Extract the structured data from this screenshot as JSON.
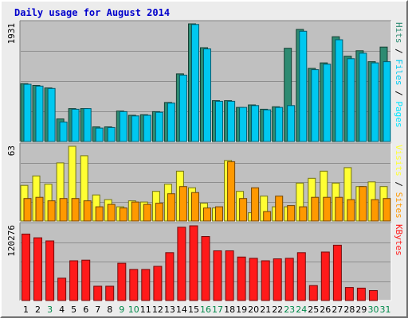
{
  "chart_data": {
    "type": "bar",
    "title": "Daily usage for August 2014",
    "colors": {
      "background": "#ececec",
      "plot": "#c0c0c0",
      "title": "#0000cc",
      "hits": "#2e8b72",
      "files": "#00c8f0",
      "pages": "#00e5ff",
      "visits": "#ffff33",
      "sites": "#ff9900",
      "kbytes": "#ff1a1a",
      "weekend_label": "#00894a",
      "weekday_label": "#000000",
      "separator": "#555555"
    },
    "categories": [
      "1",
      "2",
      "3",
      "4",
      "5",
      "6",
      "7",
      "8",
      "9",
      "10",
      "11",
      "12",
      "13",
      "14",
      "15",
      "16",
      "17",
      "18",
      "19",
      "20",
      "21",
      "22",
      "23",
      "24",
      "25",
      "26",
      "27",
      "28",
      "29",
      "30",
      "31"
    ],
    "weekend": [
      false,
      false,
      true,
      false,
      false,
      false,
      false,
      false,
      true,
      true,
      false,
      false,
      false,
      false,
      false,
      true,
      true,
      false,
      false,
      false,
      false,
      false,
      true,
      true,
      false,
      false,
      false,
      false,
      false,
      true,
      true
    ],
    "panels": [
      {
        "max_label": "1931",
        "ymax": 1931,
        "legend": [
          {
            "name": "Pages",
            "color": "#00e5ff"
          },
          {
            "name": " / ",
            "color": "#000000"
          },
          {
            "name": "Files",
            "color": "#00c8f0"
          },
          {
            "name": " / ",
            "color": "#000000"
          },
          {
            "name": "Hits",
            "color": "#2e8b72"
          }
        ],
        "series": [
          {
            "name": "Hits",
            "color": "#2e8b72",
            "values": [
              950,
              920,
              880,
              370,
              540,
              540,
              240,
              240,
              500,
              430,
              440,
              490,
              640,
              1110,
              1931,
              1540,
              670,
              670,
              560,
              600,
              530,
              570,
              1530,
              1840,
              1200,
              1290,
              1720,
              1400,
              1490,
              1310,
              1550
            ]
          },
          {
            "name": "Files",
            "color": "#00c8f0",
            "values": [
              940,
              910,
              870,
              320,
              530,
              540,
              220,
              230,
              490,
              420,
              430,
              480,
              630,
              1090,
              1920,
              1520,
              660,
              660,
              560,
              590,
              520,
              560,
              590,
              1810,
              1180,
              1270,
              1670,
              1360,
              1450,
              1290,
              1310
            ]
          }
        ]
      },
      {
        "max_label": "63",
        "ymax": 63,
        "legend": [
          {
            "name": "Sites",
            "color": "#ff9900"
          },
          {
            "name": " / ",
            "color": "#000000"
          },
          {
            "name": "Visits",
            "color": "#ffff33"
          }
        ],
        "series": [
          {
            "name": "Visits",
            "color": "#ffff33",
            "values": [
              30,
              38,
              31,
              49,
              63,
              55,
              22,
              18,
              12,
              17,
              16,
              25,
              31,
              42,
              28,
              15,
              11,
              51,
              25,
              7,
              21,
              12,
              12,
              32,
              36,
              42,
              32,
              45,
              29,
              33,
              29
            ]
          },
          {
            "name": "Sites",
            "color": "#ff9900",
            "values": [
              19,
              20,
              17,
              19,
              19,
              17,
              12,
              14,
              11,
              16,
              14,
              15,
              23,
              29,
              24,
              11,
              12,
              50,
              19,
              28,
              8,
              21,
              13,
              12,
              20,
              20,
              20,
              18,
              29,
              18,
              19
            ]
          }
        ]
      },
      {
        "max_label": "120276",
        "ymax": 120276,
        "legend": [
          {
            "name": "KBytes",
            "color": "#ff1a1a"
          }
        ],
        "series": [
          {
            "name": "KBytes",
            "color": "#ff1a1a",
            "values": [
              107000,
              101000,
              96000,
              36000,
              64000,
              65000,
              23000,
              23000,
              60000,
              50000,
              50000,
              55000,
              77000,
              118000,
              120276,
              103000,
              80000,
              80000,
              70000,
              68000,
              64000,
              67000,
              68000,
              77000,
              24000,
              78000,
              89000,
              21000,
              20000,
              16000,
              0
            ]
          }
        ]
      }
    ]
  }
}
